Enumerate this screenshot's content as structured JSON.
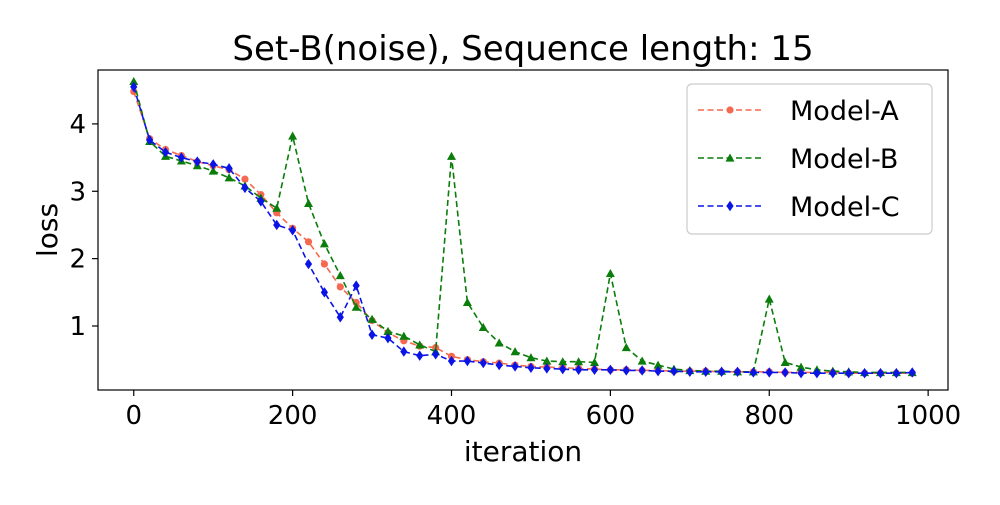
{
  "chart_data": {
    "type": "line",
    "title": "Set-B(noise), Sequence length: 15",
    "xlabel": "iteration",
    "ylabel": "loss",
    "xlim": [
      -45,
      1025
    ],
    "ylim": [
      0.05,
      4.8
    ],
    "xticks": [
      0,
      200,
      400,
      600,
      800,
      1000
    ],
    "yticks": [
      1,
      2,
      3,
      4
    ],
    "grid": false,
    "legend_position": "top-right",
    "x": [
      0,
      20,
      40,
      60,
      80,
      100,
      120,
      140,
      160,
      180,
      200,
      220,
      240,
      260,
      280,
      300,
      320,
      340,
      360,
      380,
      400,
      420,
      440,
      460,
      480,
      500,
      520,
      540,
      560,
      580,
      600,
      620,
      640,
      660,
      680,
      700,
      720,
      740,
      760,
      780,
      800,
      820,
      840,
      860,
      880,
      900,
      920,
      940,
      960,
      980
    ],
    "series": [
      {
        "name": "Model-A",
        "color": "#f4694f",
        "marker": "circle",
        "values": [
          4.48,
          3.78,
          3.62,
          3.53,
          3.44,
          3.38,
          3.32,
          3.18,
          2.95,
          2.68,
          2.45,
          2.25,
          1.92,
          1.58,
          1.35,
          1.08,
          0.9,
          0.78,
          0.7,
          0.68,
          0.55,
          0.5,
          0.47,
          0.45,
          0.42,
          0.4,
          0.39,
          0.38,
          0.37,
          0.36,
          0.35,
          0.35,
          0.34,
          0.34,
          0.33,
          0.33,
          0.33,
          0.32,
          0.32,
          0.32,
          0.32,
          0.31,
          0.31,
          0.31,
          0.31,
          0.3,
          0.3,
          0.3,
          0.3,
          0.3
        ]
      },
      {
        "name": "Model-B",
        "color": "#0a7d0a",
        "marker": "triangle",
        "values": [
          4.63,
          3.74,
          3.52,
          3.45,
          3.38,
          3.3,
          3.2,
          3.08,
          2.9,
          2.75,
          3.82,
          2.82,
          2.22,
          1.75,
          1.28,
          1.1,
          0.92,
          0.85,
          0.72,
          0.62,
          3.52,
          1.35,
          0.98,
          0.75,
          0.62,
          0.53,
          0.48,
          0.47,
          0.47,
          0.46,
          1.78,
          0.68,
          0.48,
          0.42,
          0.36,
          0.34,
          0.33,
          0.33,
          0.32,
          0.32,
          1.4,
          0.46,
          0.39,
          0.35,
          0.33,
          0.32,
          0.31,
          0.31,
          0.31,
          0.31
        ]
      },
      {
        "name": "Model-C",
        "color": "#0a14e6",
        "marker": "diamond",
        "values": [
          4.55,
          3.76,
          3.58,
          3.5,
          3.44,
          3.4,
          3.34,
          3.05,
          2.85,
          2.5,
          2.42,
          1.92,
          1.5,
          1.13,
          1.6,
          0.87,
          0.82,
          0.62,
          0.56,
          0.58,
          0.48,
          0.48,
          0.45,
          0.42,
          0.4,
          0.38,
          0.37,
          0.36,
          0.35,
          0.35,
          0.35,
          0.34,
          0.34,
          0.33,
          0.33,
          0.32,
          0.32,
          0.32,
          0.32,
          0.31,
          0.31,
          0.31,
          0.3,
          0.3,
          0.3,
          0.3,
          0.3,
          0.3,
          0.3,
          0.31
        ]
      }
    ]
  }
}
